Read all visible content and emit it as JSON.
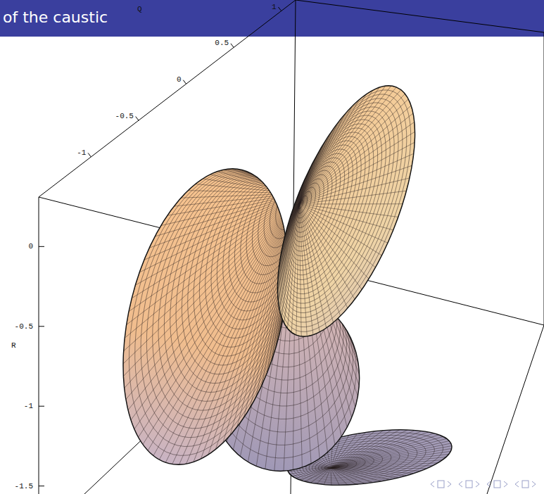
{
  "chart_data": {
    "type": "surface",
    "title": "of the caustic",
    "x_label": "Q",
    "y_label": "R",
    "xlim": [
      -1.55,
      1.15
    ],
    "xticks": [
      1,
      0.5,
      0,
      -0.5,
      -1
    ],
    "ylim": [
      -1.55,
      0.31
    ],
    "yticks": [
      0,
      -0.5,
      -1,
      -1.5
    ],
    "grid": false
  }
}
